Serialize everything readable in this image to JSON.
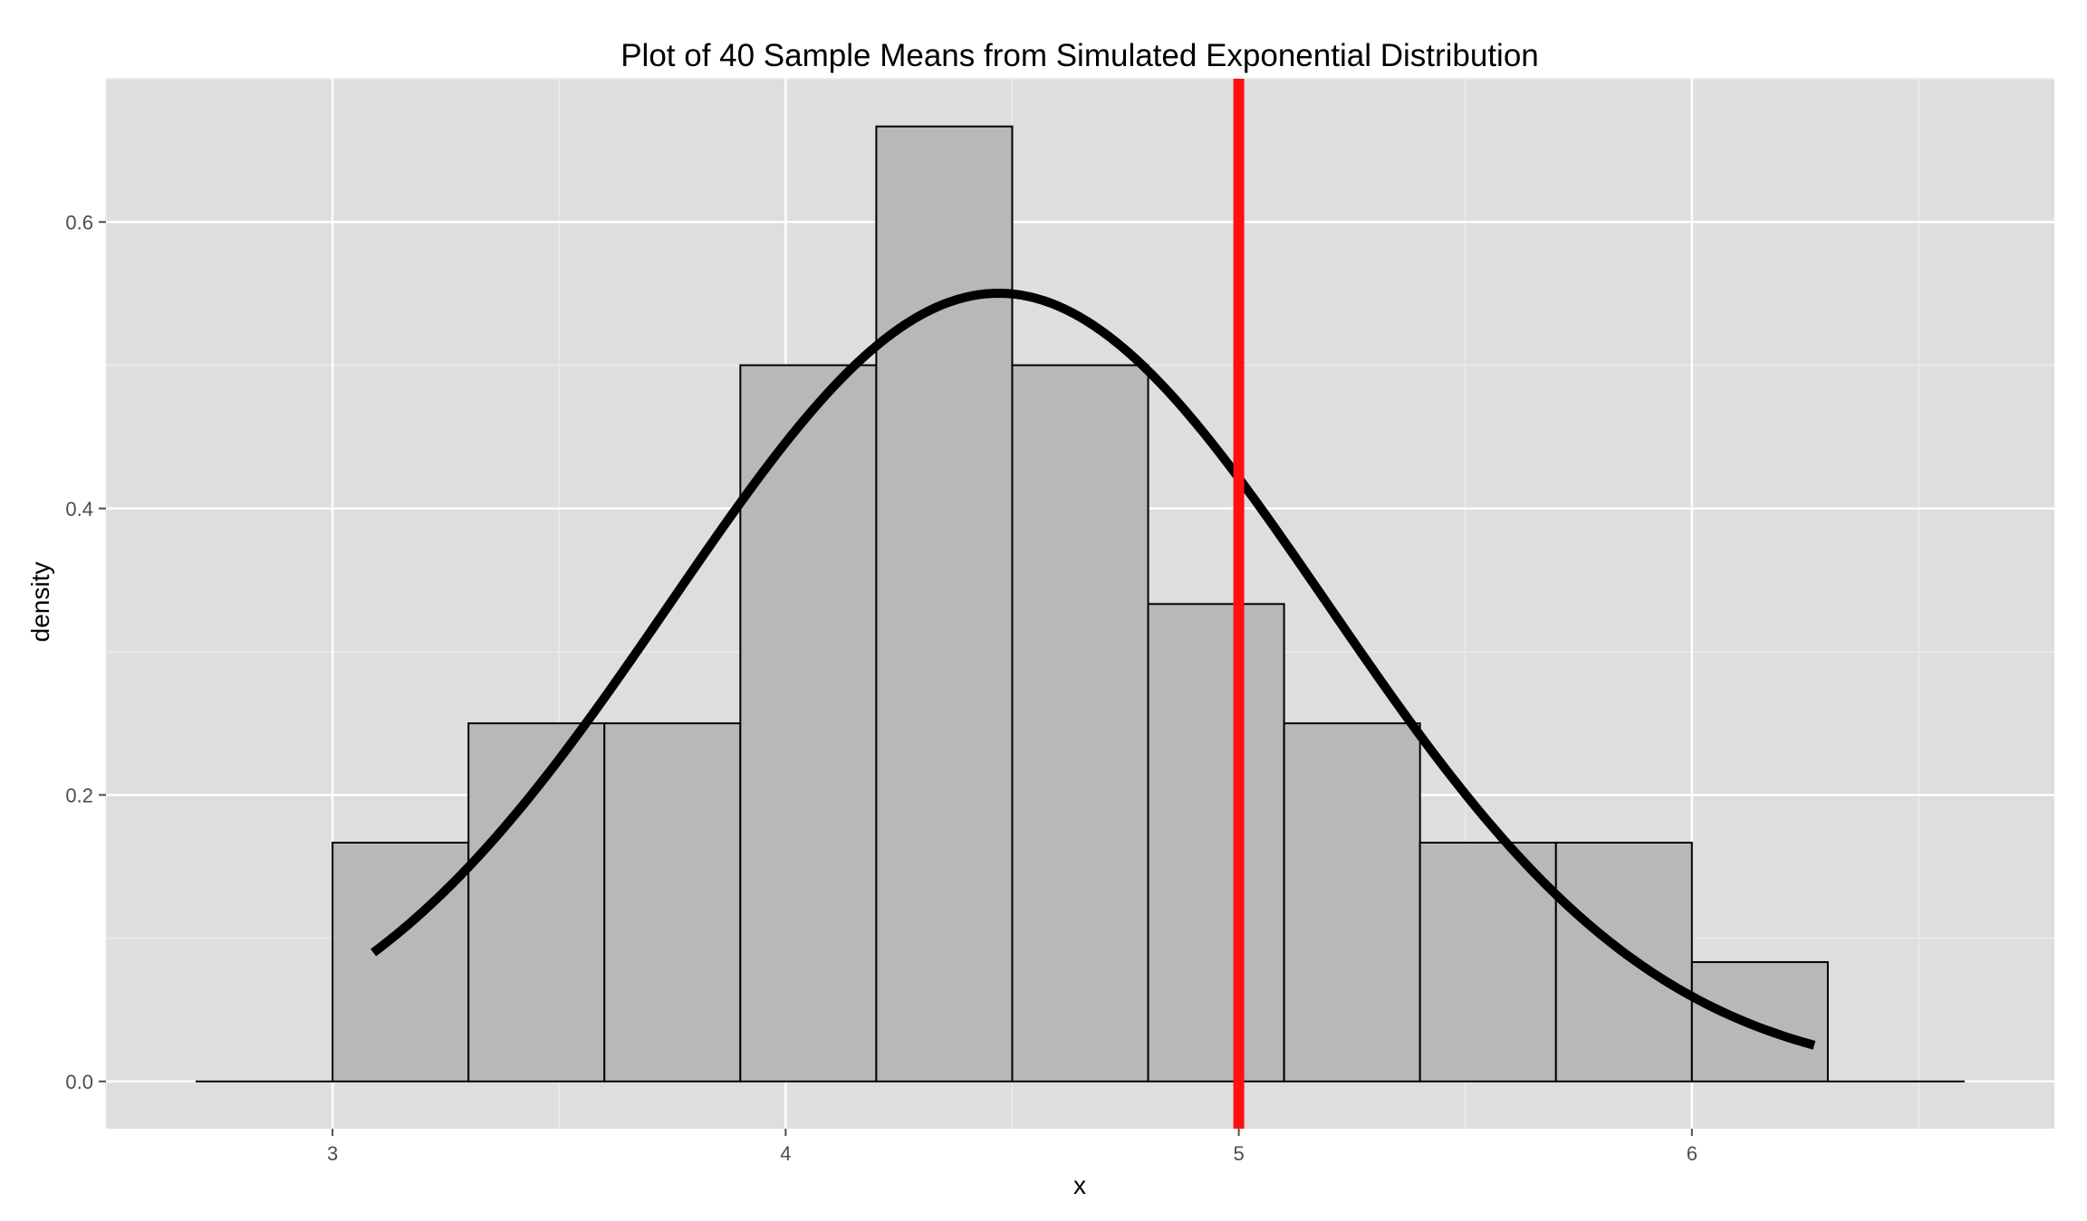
{
  "chart_data": {
    "type": "bar",
    "title": "Plot of 40 Sample Means from Simulated Exponential Distribution",
    "xlabel": "x",
    "ylabel": "density",
    "xlim": [
      2.5,
      6.8
    ],
    "ylim": [
      -0.033,
      0.7
    ],
    "x_ticks": [
      3,
      4,
      5,
      6
    ],
    "x_tick_labels": [
      "3",
      "4",
      "5",
      "6"
    ],
    "y_ticks": [
      0.0,
      0.2,
      0.4,
      0.6
    ],
    "y_tick_labels": [
      "0.0",
      "0.2",
      "0.4",
      "0.6"
    ],
    "grid": true,
    "legend": "none",
    "histogram": {
      "bin_width": 0.3,
      "bins": [
        {
          "start": 2.7,
          "end": 3.0,
          "density": 0.0
        },
        {
          "start": 3.0,
          "end": 3.3,
          "density": 0.1667
        },
        {
          "start": 3.3,
          "end": 3.6,
          "density": 0.25
        },
        {
          "start": 3.6,
          "end": 3.9,
          "density": 0.25
        },
        {
          "start": 3.9,
          "end": 4.2,
          "density": 0.5
        },
        {
          "start": 4.2,
          "end": 4.5,
          "density": 0.6667
        },
        {
          "start": 4.5,
          "end": 4.8,
          "density": 0.5
        },
        {
          "start": 4.8,
          "end": 5.1,
          "density": 0.3333
        },
        {
          "start": 5.1,
          "end": 5.4,
          "density": 0.25
        },
        {
          "start": 5.4,
          "end": 5.7,
          "density": 0.1667
        },
        {
          "start": 5.7,
          "end": 6.0,
          "density": 0.1667
        },
        {
          "start": 6.0,
          "end": 6.3,
          "density": 0.0833
        },
        {
          "start": 6.3,
          "end": 6.6,
          "density": 0.0
        }
      ],
      "fill": "#b8b8b8",
      "stroke": "#000000"
    },
    "density_curve": {
      "type": "normal",
      "mean": 4.47,
      "sd": 0.725,
      "x_range": [
        3.09,
        6.27
      ],
      "color": "#000000"
    },
    "vline": {
      "x": 5.0,
      "color": "#ff1010"
    }
  },
  "colors": {
    "panel_background": "#dedede",
    "grid_major": "#ffffff",
    "grid_minor": "#ebebeb"
  }
}
